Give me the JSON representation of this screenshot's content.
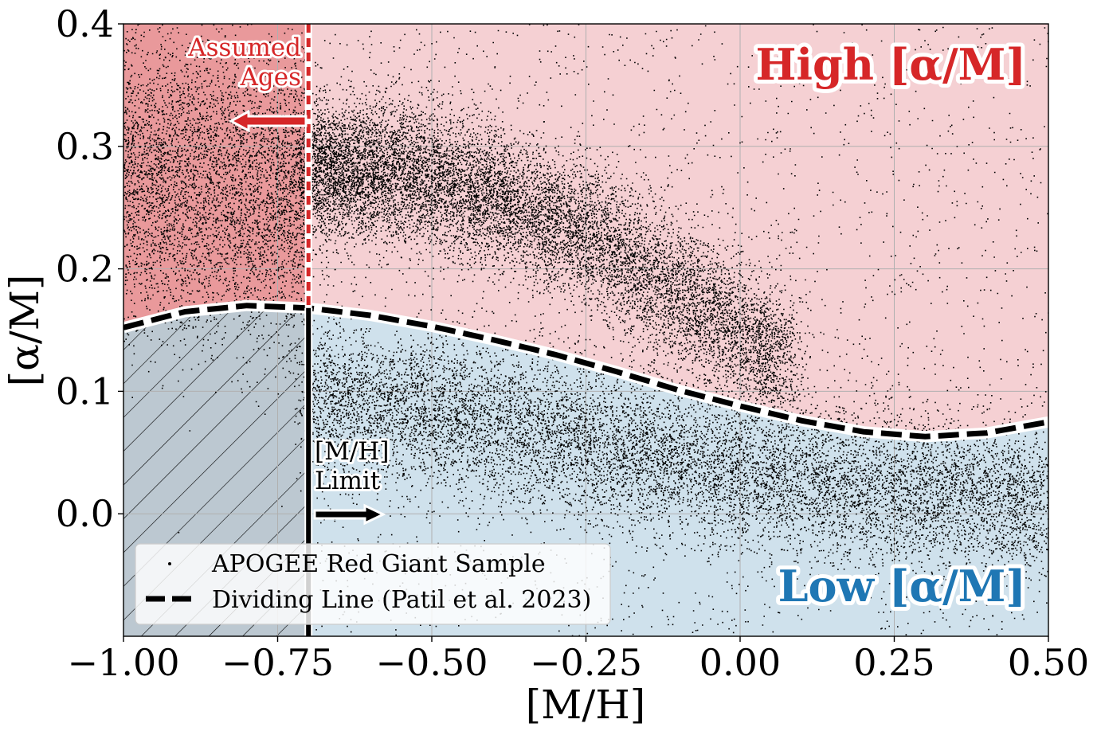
{
  "chart_data": {
    "type": "scatter",
    "xlabel": "[M/H]",
    "ylabel": "[α/M]",
    "xlim": [
      -1.0,
      0.5
    ],
    "ylim": [
      -0.1,
      0.4
    ],
    "xticks": [
      -1.0,
      -0.75,
      -0.5,
      -0.25,
      0.0,
      0.25,
      0.5
    ],
    "xtick_labels": [
      "−1.00",
      "−0.75",
      "−0.50",
      "−0.25",
      "0.00",
      "0.25",
      "0.50"
    ],
    "yticks": [
      0.0,
      0.1,
      0.2,
      0.3,
      0.4
    ],
    "ytick_labels": [
      "0.0",
      "0.1",
      "0.2",
      "0.3",
      "0.4"
    ],
    "grid": true,
    "series": [
      {
        "name": "APOGEE Red Giant Sample",
        "kind": "scatter",
        "color": "#000000",
        "density_ridges": [
          {
            "component": "high-alpha",
            "x": [
              -0.7,
              -0.55,
              -0.4,
              -0.25,
              -0.1,
              0.05
            ],
            "y": [
              0.28,
              0.28,
              0.26,
              0.23,
              0.18,
              0.13
            ]
          },
          {
            "component": "low-alpha",
            "x": [
              -0.7,
              -0.5,
              -0.25,
              0.0,
              0.25,
              0.5
            ],
            "y": [
              0.09,
              0.085,
              0.06,
              0.035,
              0.02,
              0.01
            ]
          }
        ]
      },
      {
        "name": "Dividing Line (Patil et al. 2023)",
        "kind": "line",
        "style": "dashed",
        "color": "#000000",
        "x": [
          -1.0,
          -0.9,
          -0.8,
          -0.7,
          -0.6,
          -0.5,
          -0.4,
          -0.3,
          -0.2,
          -0.1,
          0.0,
          0.1,
          0.2,
          0.3,
          0.4,
          0.5
        ],
        "y": [
          0.152,
          0.165,
          0.17,
          0.168,
          0.162,
          0.153,
          0.142,
          0.13,
          0.116,
          0.101,
          0.088,
          0.076,
          0.067,
          0.063,
          0.066,
          0.075
        ]
      }
    ],
    "metallicity_limit": -0.7,
    "annotations": {
      "high_label": "High [α/M]",
      "low_label": "Low [α/M]",
      "assumed_ages_line1": "Assumed",
      "assumed_ages_line2": "Ages",
      "mh_limit_line1": "[M/H]",
      "mh_limit_line2": "Limit"
    },
    "legend": {
      "position": "lower-left",
      "entries": [
        "APOGEE Red Giant Sample",
        "Dividing Line (Patil et al. 2023)"
      ]
    },
    "colors": {
      "high_region": "#f5d0d3",
      "high_assumed_region": "#e9999b",
      "low_region": "#cfe1ec",
      "low_excluded_region": "#bcc8d1",
      "high_label": "#d62728",
      "low_label": "#1f77b4",
      "assumed_line": "#d62728"
    }
  }
}
